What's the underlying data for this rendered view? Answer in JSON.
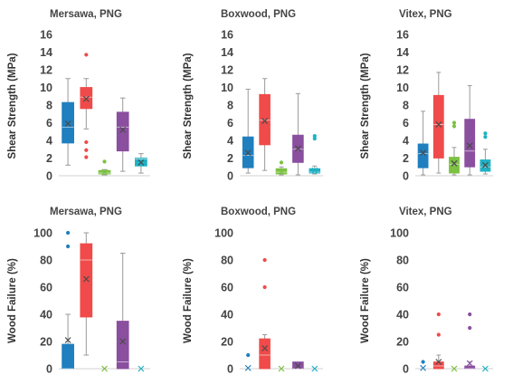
{
  "series_colors": [
    "#1f7fbf",
    "#f04a4a",
    "#7cc142",
    "#8a4f9e",
    "#1fb1c4"
  ],
  "ylabels": {
    "shear": "Shear Strength (MPa)",
    "wood": "Wood Failure (%)"
  },
  "chart_data": [
    {
      "type": "box",
      "title": "Mersawa, PNG",
      "ylabel": "Shear Strength (MPa)",
      "ylim": [
        0,
        16
      ],
      "yticks": [
        0,
        2,
        4,
        6,
        8,
        10,
        12,
        14,
        16
      ],
      "grid": false,
      "boxes": [
        {
          "whisker_low": 1.2,
          "q1": 3.7,
          "median": 5.5,
          "q3": 8.3,
          "whisker_high": 11.0,
          "mean": 5.9,
          "outliers": []
        },
        {
          "whisker_low": 5.3,
          "q1": 7.6,
          "median": 8.9,
          "q3": 10.0,
          "whisker_high": 11.0,
          "mean": 8.7,
          "outliers": [
            13.7,
            3.8,
            2.9,
            2.1
          ]
        },
        {
          "whisker_low": 0.1,
          "q1": 0.2,
          "median": 0.3,
          "q3": 0.6,
          "whisker_high": 0.7,
          "mean": 0.4,
          "outliers": [
            1.6
          ]
        },
        {
          "whisker_low": 0.5,
          "q1": 2.8,
          "median": 5.5,
          "q3": 7.2,
          "whisker_high": 8.8,
          "mean": 5.2,
          "outliers": []
        },
        {
          "whisker_low": 0.3,
          "q1": 1.1,
          "median": 1.9,
          "q3": 2.0,
          "whisker_high": 2.5,
          "mean": 1.5,
          "outliers": []
        }
      ]
    },
    {
      "type": "box",
      "title": "Boxwood, PNG",
      "ylabel": "Shear Strength (MPa)",
      "ylim": [
        0,
        16
      ],
      "yticks": [
        0,
        2,
        4,
        6,
        8,
        10,
        12,
        14,
        16
      ],
      "grid": false,
      "boxes": [
        {
          "whisker_low": 0.3,
          "q1": 0.9,
          "median": 2.3,
          "q3": 4.4,
          "whisker_high": 9.8,
          "mean": 2.6,
          "outliers": []
        },
        {
          "whisker_low": 0.6,
          "q1": 3.5,
          "median": 6.3,
          "q3": 9.2,
          "whisker_high": 11.0,
          "mean": 6.2,
          "outliers": []
        },
        {
          "whisker_low": 0.1,
          "q1": 0.2,
          "median": 0.4,
          "q3": 0.8,
          "whisker_high": 1.0,
          "mean": 0.5,
          "outliers": [
            1.5
          ]
        },
        {
          "whisker_low": 0.1,
          "q1": 1.5,
          "median": 3.0,
          "q3": 4.6,
          "whisker_high": 9.3,
          "mean": 3.1,
          "outliers": []
        },
        {
          "whisker_low": 0.2,
          "q1": 0.3,
          "median": 0.4,
          "q3": 0.8,
          "whisker_high": 1.1,
          "mean": 0.6,
          "outliers": [
            4.2,
            4.5
          ]
        }
      ]
    },
    {
      "type": "box",
      "title": "Vitex, PNG",
      "ylabel": "Shear Strength (MPa)",
      "ylim": [
        0,
        16
      ],
      "yticks": [
        0,
        2,
        4,
        6,
        8,
        10,
        12,
        14,
        16
      ],
      "grid": false,
      "boxes": [
        {
          "whisker_low": 0.1,
          "q1": 0.9,
          "median": 2.5,
          "q3": 3.6,
          "whisker_high": 7.3,
          "mean": 2.6,
          "outliers": []
        },
        {
          "whisker_low": 0.3,
          "q1": 2.0,
          "median": 5.8,
          "q3": 9.1,
          "whisker_high": 11.7,
          "mean": 5.8,
          "outliers": []
        },
        {
          "whisker_low": 0.1,
          "q1": 0.3,
          "median": 1.3,
          "q3": 2.1,
          "whisker_high": 3.2,
          "mean": 1.4,
          "outliers": [
            5.6,
            6.0
          ]
        },
        {
          "whisker_low": 0.1,
          "q1": 1.0,
          "median": 2.8,
          "q3": 6.4,
          "whisker_high": 10.2,
          "mean": 3.4,
          "outliers": []
        },
        {
          "whisker_low": 0.2,
          "q1": 0.5,
          "median": 1.0,
          "q3": 1.8,
          "whisker_high": 3.0,
          "mean": 1.2,
          "outliers": [
            4.4,
            4.8
          ]
        }
      ]
    },
    {
      "type": "box",
      "title": "Mersawa, PNG",
      "ylabel": "Wood Failure (%)",
      "ylim": [
        0,
        100
      ],
      "yticks": [
        0,
        20,
        40,
        60,
        80,
        100
      ],
      "grid": false,
      "boxes": [
        {
          "whisker_low": 0,
          "q1": 0,
          "median": 0,
          "q3": 18,
          "whisker_high": 40,
          "mean": 21,
          "outliers": [
            90,
            100
          ]
        },
        {
          "whisker_low": 10,
          "q1": 38,
          "median": 80,
          "q3": 92,
          "whisker_high": 100,
          "mean": 66,
          "outliers": []
        },
        {
          "whisker_low": 0,
          "q1": 0,
          "median": 0,
          "q3": 0,
          "whisker_high": 0,
          "mean": 0,
          "outliers": []
        },
        {
          "whisker_low": 0,
          "q1": 0,
          "median": 5,
          "q3": 35,
          "whisker_high": 85,
          "mean": 20,
          "outliers": []
        },
        {
          "whisker_low": 0,
          "q1": 0,
          "median": 0,
          "q3": 0,
          "whisker_high": 0,
          "mean": 0,
          "outliers": []
        }
      ]
    },
    {
      "type": "box",
      "title": "Boxwood, PNG",
      "ylabel": "Wood Failure (%)",
      "ylim": [
        0,
        100
      ],
      "yticks": [
        0,
        20,
        40,
        60,
        80,
        100
      ],
      "grid": false,
      "boxes": [
        {
          "whisker_low": 0,
          "q1": 0,
          "median": 0,
          "q3": 0,
          "whisker_high": 0,
          "mean": 0.5,
          "outliers": [
            10
          ]
        },
        {
          "whisker_low": 0,
          "q1": 0,
          "median": 10,
          "q3": 22,
          "whisker_high": 25,
          "mean": 15,
          "outliers": [
            60,
            80
          ]
        },
        {
          "whisker_low": 0,
          "q1": 0,
          "median": 0,
          "q3": 0,
          "whisker_high": 0,
          "mean": 0,
          "outliers": []
        },
        {
          "whisker_low": 0,
          "q1": 0,
          "median": 0,
          "q3": 5,
          "whisker_high": 5,
          "mean": 2,
          "outliers": []
        },
        {
          "whisker_low": 0,
          "q1": 0,
          "median": 0,
          "q3": 0,
          "whisker_high": 0,
          "mean": 0,
          "outliers": []
        }
      ]
    },
    {
      "type": "box",
      "title": "Vitex, PNG",
      "ylabel": "Wood Failure (%)",
      "ylim": [
        0,
        100
      ],
      "yticks": [
        0,
        20,
        40,
        60,
        80,
        100
      ],
      "grid": false,
      "boxes": [
        {
          "whisker_low": 0,
          "q1": 0,
          "median": 0,
          "q3": 0,
          "whisker_high": 0,
          "mean": 0.5,
          "outliers": [
            5
          ]
        },
        {
          "whisker_low": 0,
          "q1": 0,
          "median": 2,
          "q3": 5,
          "whisker_high": 10,
          "mean": 5,
          "outliers": [
            25,
            40
          ]
        },
        {
          "whisker_low": 0,
          "q1": 0,
          "median": 0,
          "q3": 0,
          "whisker_high": 0,
          "mean": 0,
          "outliers": []
        },
        {
          "whisker_low": 0,
          "q1": 0,
          "median": 0,
          "q3": 2,
          "whisker_high": 5,
          "mean": 4,
          "outliers": [
            30,
            40
          ]
        },
        {
          "whisker_low": 0,
          "q1": 0,
          "median": 0,
          "q3": 0,
          "whisker_high": 0,
          "mean": 0,
          "outliers": []
        }
      ]
    }
  ]
}
